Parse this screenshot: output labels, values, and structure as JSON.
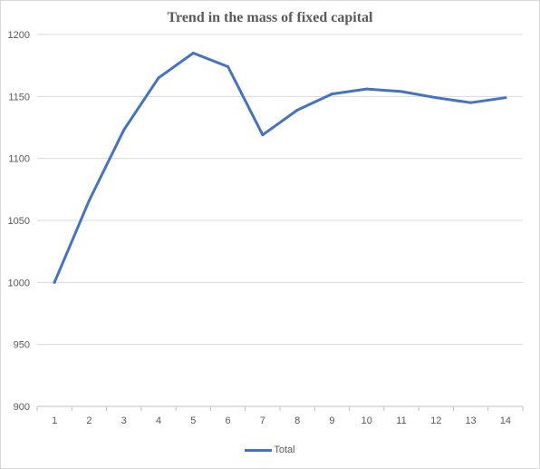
{
  "chart_data": {
    "type": "line",
    "title": "Trend in the mass of fixed capital",
    "xlabel": "",
    "ylabel": "",
    "categories": [
      "1",
      "2",
      "3",
      "4",
      "5",
      "6",
      "7",
      "8",
      "9",
      "10",
      "11",
      "12",
      "13",
      "14"
    ],
    "series": [
      {
        "name": "Total",
        "color": "#4472c4",
        "values": [
          1000,
          1066,
          1123,
          1165,
          1185,
          1174,
          1119,
          1139,
          1152,
          1156,
          1154,
          1149,
          1145,
          1149
        ]
      }
    ],
    "ylim": [
      900,
      1200
    ],
    "yticks": [
      900,
      950,
      1000,
      1050,
      1100,
      1150,
      1200
    ],
    "grid": true,
    "legend_position": "bottom"
  }
}
